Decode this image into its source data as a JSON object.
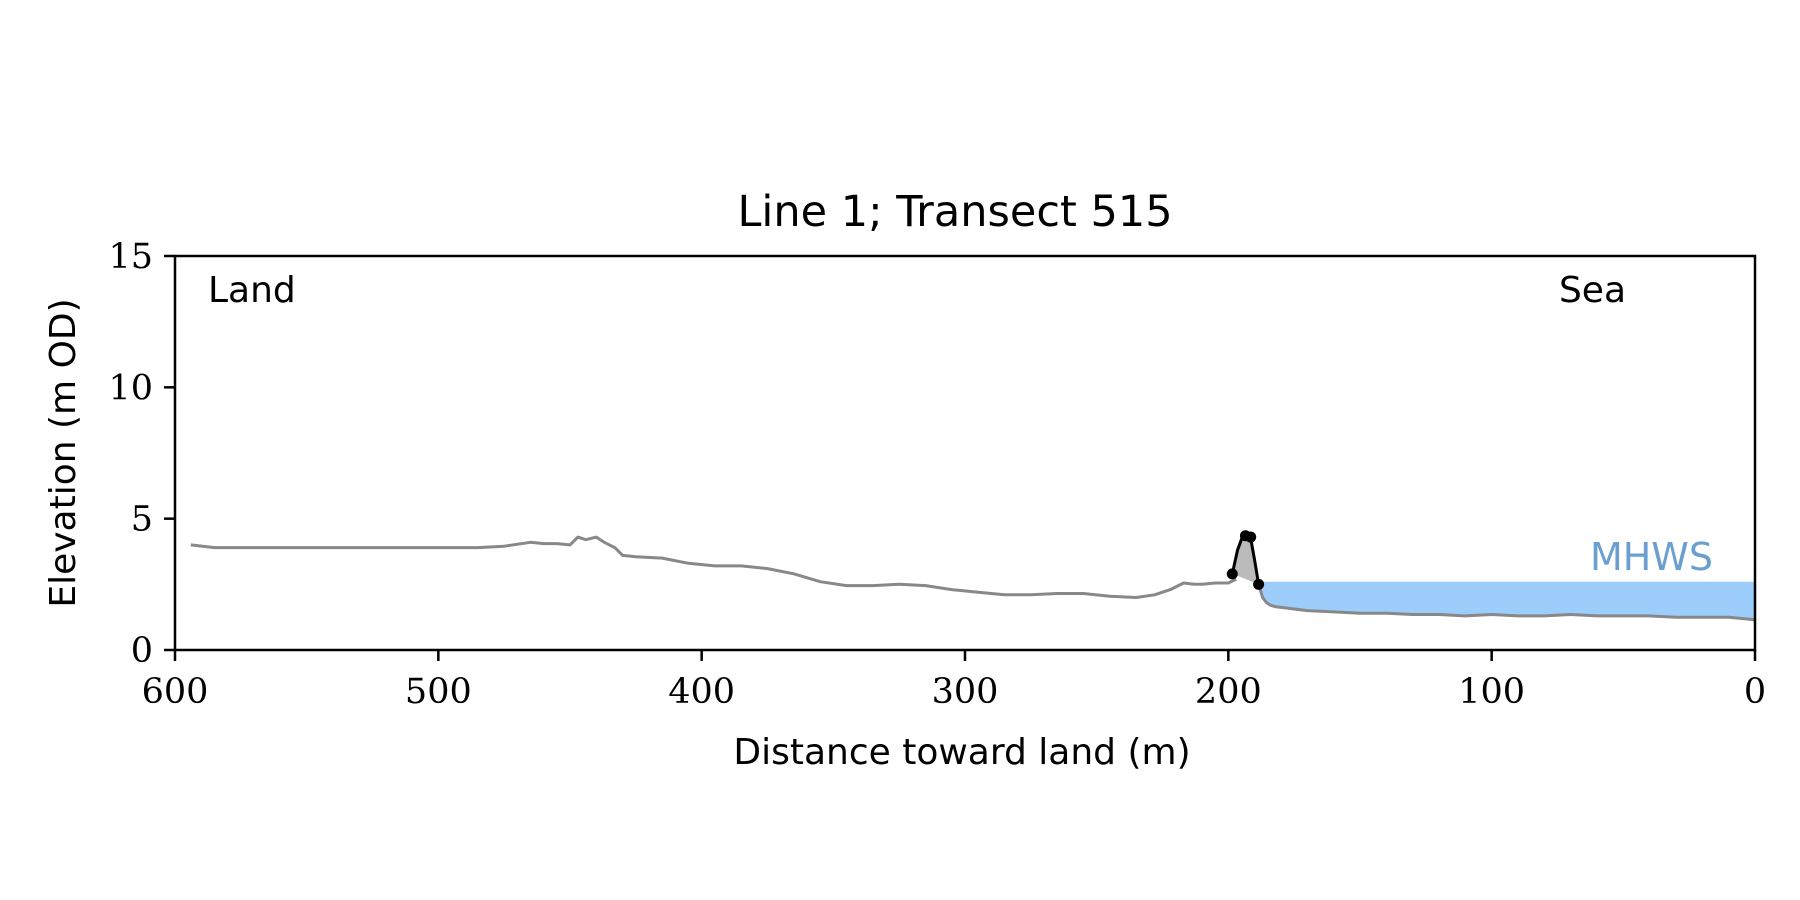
{
  "chart_data": {
    "type": "line",
    "title": "Line 1; Transect 515",
    "xlabel": "Distance toward land (m)",
    "ylabel": "Elevation (m OD)",
    "xlim": [
      600,
      0
    ],
    "ylim": [
      0,
      15
    ],
    "x_reversed": true,
    "xticks": [
      600,
      500,
      400,
      300,
      200,
      100,
      0
    ],
    "yticks": [
      0,
      5,
      10,
      15
    ],
    "grid": false,
    "annotations": {
      "land": "Land",
      "sea": "Sea",
      "mhws": "MHWS"
    },
    "mhws_level": 2.6,
    "colors": {
      "profile": "#888888",
      "dune": "#000000",
      "dune_fill": "#bbbbbb",
      "water": "#9dcdfa",
      "mhws_text": "#6a9fcf"
    },
    "series": [
      {
        "x": [
          594,
          585,
          575,
          565,
          555,
          545,
          535,
          525,
          515,
          505,
          495,
          485,
          475,
          465,
          460,
          455,
          450,
          447,
          444,
          440,
          437,
          433,
          430,
          425,
          415,
          405,
          395,
          385,
          375,
          365,
          355,
          345,
          335,
          325,
          315,
          305,
          295,
          285,
          275,
          265,
          255,
          245,
          235,
          228,
          222,
          217,
          213,
          210,
          205,
          200,
          197
        ],
        "y": [
          4.0,
          3.9,
          3.9,
          3.9,
          3.9,
          3.9,
          3.9,
          3.9,
          3.9,
          3.9,
          3.9,
          3.9,
          3.95,
          4.1,
          4.05,
          4.05,
          4.0,
          4.3,
          4.2,
          4.3,
          4.1,
          3.9,
          3.6,
          3.55,
          3.5,
          3.3,
          3.2,
          3.2,
          3.1,
          2.9,
          2.6,
          2.45,
          2.45,
          2.5,
          2.45,
          2.3,
          2.2,
          2.1,
          2.1,
          2.15,
          2.15,
          2.05,
          2.0,
          2.1,
          2.3,
          2.55,
          2.5,
          2.5,
          2.55,
          2.55,
          2.7
        ]
      },
      {
        "x": [
          198.5,
          196.5,
          194.5,
          192.5,
          191.5,
          190,
          188.5
        ],
        "y": [
          2.9,
          3.8,
          4.35,
          4.35,
          4.25,
          3.4,
          2.5
        ]
      },
      {
        "x": [
          188.5,
          187,
          185.5,
          184,
          182,
          178,
          170,
          160,
          150,
          140,
          130,
          120,
          110,
          100,
          90,
          80,
          70,
          60,
          50,
          40,
          30,
          20,
          10,
          5,
          0
        ],
        "y": [
          2.5,
          2.0,
          1.8,
          1.7,
          1.65,
          1.6,
          1.5,
          1.45,
          1.4,
          1.4,
          1.35,
          1.35,
          1.3,
          1.35,
          1.3,
          1.3,
          1.35,
          1.3,
          1.3,
          1.3,
          1.25,
          1.25,
          1.25,
          1.2,
          1.15
        ]
      }
    ],
    "dune_points": {
      "x": [
        198.5,
        193.5,
        191.5,
        188.5
      ],
      "y": [
        2.9,
        4.35,
        4.3,
        2.5
      ]
    }
  }
}
